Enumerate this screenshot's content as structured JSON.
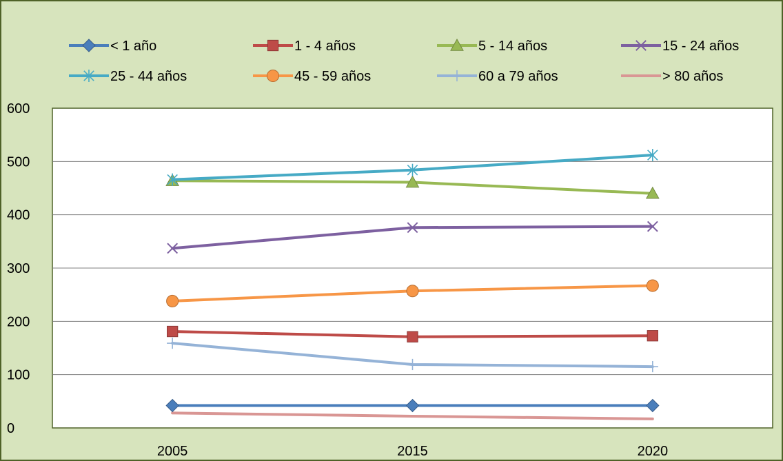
{
  "colors": {
    "background": "#d7e4bd",
    "plot_background": "#ffffff",
    "border": "#4f6228",
    "gridline": "#7f7f7f"
  },
  "chart_data": {
    "type": "line",
    "title": "",
    "xlabel": "",
    "ylabel": "",
    "categories": [
      "2005",
      "2015",
      "2020"
    ],
    "ylim": [
      0,
      600
    ],
    "yticks": [
      0,
      100,
      200,
      300,
      400,
      500,
      600
    ],
    "grid": true,
    "legend_position": "top",
    "series": [
      {
        "name": "< 1 año",
        "values": [
          42,
          42,
          42
        ],
        "color": "#4a7ebb",
        "marker": "diamond"
      },
      {
        "name": "1 -  4 años",
        "values": [
          181,
          171,
          173
        ],
        "color": "#be4b48",
        "marker": "square"
      },
      {
        "name": "5 - 14 años",
        "values": [
          464,
          461,
          440
        ],
        "color": "#98b954",
        "marker": "triangle"
      },
      {
        "name": "15 - 24 años",
        "values": [
          337,
          376,
          378
        ],
        "color": "#7d60a0",
        "marker": "x"
      },
      {
        "name": "25 - 44 años",
        "values": [
          466,
          484,
          512
        ],
        "color": "#46aac5",
        "marker": "star"
      },
      {
        "name": "45 - 59 años",
        "values": [
          238,
          257,
          267
        ],
        "color": "#f79646",
        "marker": "circle"
      },
      {
        "name": "60 a 79 años",
        "values": [
          159,
          119,
          115
        ],
        "color": "#95b3d7",
        "marker": "plus"
      },
      {
        "name": "> 80 años",
        "values": [
          28,
          22,
          17
        ],
        "color": "#d99694",
        "marker": "none"
      }
    ]
  }
}
